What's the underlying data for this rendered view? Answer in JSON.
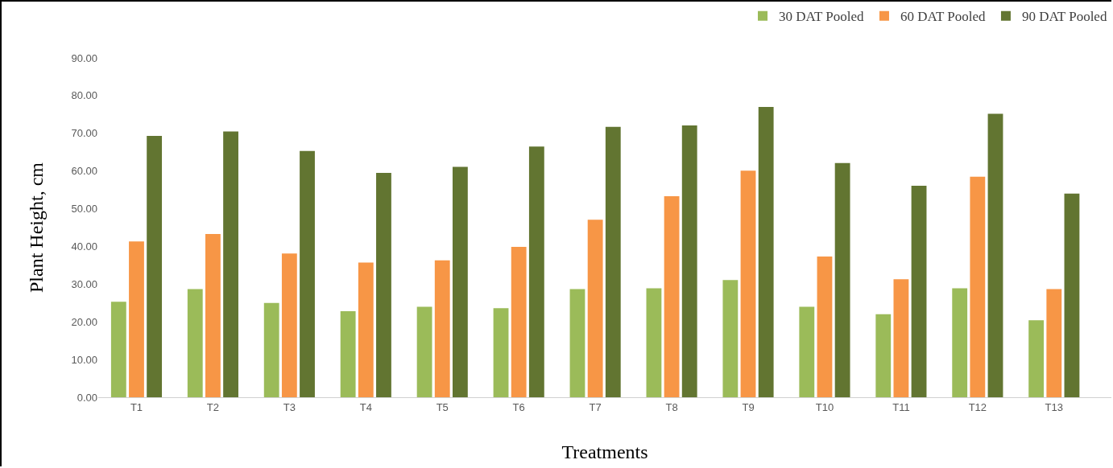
{
  "chart_data": {
    "type": "bar",
    "xlabel": "Treatments",
    "ylabel": "Plant Height, cm",
    "categories": [
      "T1",
      "T2",
      "T3",
      "T4",
      "T5",
      "T6",
      "T7",
      "T8",
      "T9",
      "T10",
      "T11",
      "T12",
      "T13"
    ],
    "series": [
      {
        "name": "30 DAT Pooled",
        "color": "#9bbb59",
        "values": [
          25.3,
          28.7,
          25.0,
          22.8,
          24.0,
          23.6,
          28.7,
          28.9,
          31.1,
          24.0,
          22.0,
          28.9,
          20.4
        ]
      },
      {
        "name": "60 DAT Pooled",
        "color": "#f79646",
        "values": [
          41.3,
          43.3,
          38.1,
          35.7,
          36.3,
          39.9,
          47.1,
          53.3,
          60.1,
          37.3,
          31.3,
          58.5,
          28.7
        ]
      },
      {
        "name": "90 DAT Pooled",
        "color": "#627531",
        "values": [
          69.3,
          70.5,
          65.3,
          59.5,
          61.1,
          66.5,
          71.7,
          72.1,
          77.0,
          62.1,
          56.1,
          75.2,
          54.0
        ]
      }
    ],
    "ylim": [
      0,
      90
    ],
    "yticks": [
      {
        "value": 0,
        "label": "0.00"
      },
      {
        "value": 10,
        "label": "10.00"
      },
      {
        "value": 20,
        "label": "20.00"
      },
      {
        "value": 30,
        "label": "30.00"
      },
      {
        "value": 40,
        "label": "40.00"
      },
      {
        "value": 50,
        "label": "50.00"
      },
      {
        "value": 60,
        "label": "60.00"
      },
      {
        "value": 70,
        "label": "70.00"
      },
      {
        "value": 80,
        "label": "80.00"
      },
      {
        "value": 90,
        "label": "90.00"
      }
    ],
    "grid": false,
    "legend": "top right"
  }
}
